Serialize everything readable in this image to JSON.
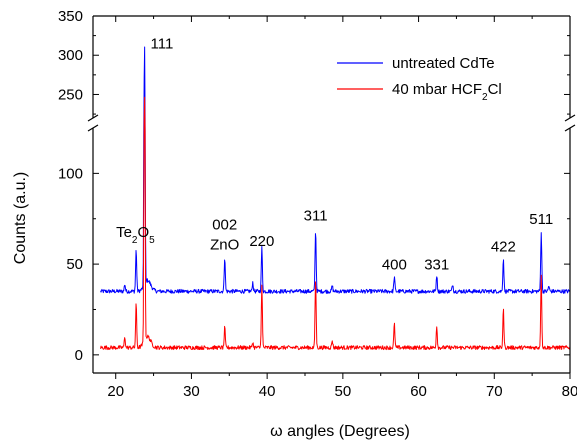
{
  "chart_data": {
    "type": "line",
    "title": "",
    "xlabel": "ω angles (Degrees)",
    "ylabel": "Counts  (a.u.)",
    "xlim": [
      17,
      80
    ],
    "ylim_lower": [
      -10,
      125
    ],
    "ylim_upper": [
      220,
      350
    ],
    "x_ticks": [
      20,
      30,
      40,
      50,
      60,
      70,
      80
    ],
    "y_ticks_lower": [
      0,
      50,
      100
    ],
    "y_ticks_upper": [
      250,
      300,
      350
    ],
    "broken_y_axis": true,
    "grid": false,
    "legend_position": "top-right",
    "series": [
      {
        "name": "untreated CdTe",
        "color": "#0000ff",
        "baseline": 35,
        "peaks": [
          {
            "x": 21.2,
            "y": 39
          },
          {
            "x": 22.7,
            "y": 58
          },
          {
            "x": 23.8,
            "y": 320
          },
          {
            "x": 34.4,
            "y": 54
          },
          {
            "x": 38.1,
            "y": 40
          },
          {
            "x": 39.3,
            "y": 59
          },
          {
            "x": 46.4,
            "y": 69
          },
          {
            "x": 48.6,
            "y": 38
          },
          {
            "x": 56.8,
            "y": 43
          },
          {
            "x": 62.4,
            "y": 44
          },
          {
            "x": 64.5,
            "y": 39
          },
          {
            "x": 71.2,
            "y": 53
          },
          {
            "x": 76.2,
            "y": 68
          },
          {
            "x": 77.2,
            "y": 38
          }
        ]
      },
      {
        "name": "40 mbar HCF2Cl",
        "color": "#ff0000",
        "baseline": 4,
        "peaks": [
          {
            "x": 21.2,
            "y": 10
          },
          {
            "x": 22.7,
            "y": 28
          },
          {
            "x": 23.8,
            "y": 255
          },
          {
            "x": 34.4,
            "y": 15
          },
          {
            "x": 38.1,
            "y": 7
          },
          {
            "x": 39.3,
            "y": 38
          },
          {
            "x": 46.4,
            "y": 42
          },
          {
            "x": 48.6,
            "y": 8
          },
          {
            "x": 56.8,
            "y": 17
          },
          {
            "x": 62.4,
            "y": 16
          },
          {
            "x": 71.2,
            "y": 25
          },
          {
            "x": 76.2,
            "y": 43
          }
        ]
      }
    ],
    "annotations": [
      {
        "text": "111",
        "x": 23.8,
        "y": 320,
        "axis": "upper"
      },
      {
        "text": "Te₂O₅",
        "x": 22.6,
        "y": 65,
        "axis": "lower"
      },
      {
        "text": "002",
        "x": 34.4,
        "y": 69,
        "axis": "lower"
      },
      {
        "text": "ZnO",
        "x": 34.4,
        "y": 58,
        "axis": "lower"
      },
      {
        "text": "220",
        "x": 39.3,
        "y": 60,
        "axis": "lower"
      },
      {
        "text": "311",
        "x": 46.4,
        "y": 74,
        "axis": "lower"
      },
      {
        "text": "400",
        "x": 56.8,
        "y": 47,
        "axis": "lower"
      },
      {
        "text": "331",
        "x": 62.4,
        "y": 47,
        "axis": "lower"
      },
      {
        "text": "422",
        "x": 71.2,
        "y": 57,
        "axis": "lower"
      },
      {
        "text": "511",
        "x": 76.2,
        "y": 72,
        "axis": "lower"
      }
    ]
  }
}
